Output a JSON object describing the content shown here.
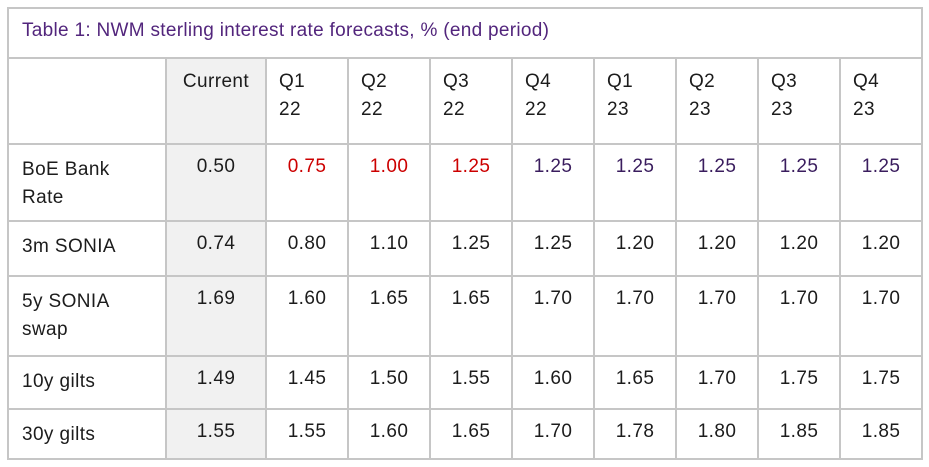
{
  "colors": {
    "black": "#1C1C1C",
    "red": "#CC0000",
    "purple": "#3A1D5E",
    "title_purple": "#52257C",
    "current_column_bg": "#F1F1F1",
    "grid_border": "#C6C6C6"
  },
  "chart_data": {
    "type": "table",
    "title": "Table 1: NWM sterling interest rate forecasts, % (end period)",
    "columns": [
      {
        "line1": "",
        "line2": ""
      },
      {
        "line1": "Current",
        "line2": ""
      },
      {
        "line1": "Q1",
        "line2": "22"
      },
      {
        "line1": "Q2",
        "line2": "22"
      },
      {
        "line1": "Q3",
        "line2": "22"
      },
      {
        "line1": "Q4",
        "line2": "22"
      },
      {
        "line1": "Q1",
        "line2": "23"
      },
      {
        "line1": "Q2",
        "line2": "23"
      },
      {
        "line1": "Q3",
        "line2": "23"
      },
      {
        "line1": "Q4",
        "line2": "23"
      }
    ],
    "rows": [
      {
        "label": "BoE Bank Rate",
        "cells": [
          {
            "value": "0.50",
            "color": "black"
          },
          {
            "value": "0.75",
            "color": "red"
          },
          {
            "value": "1.00",
            "color": "red"
          },
          {
            "value": "1.25",
            "color": "red"
          },
          {
            "value": "1.25",
            "color": "purple"
          },
          {
            "value": "1.25",
            "color": "purple"
          },
          {
            "value": "1.25",
            "color": "purple"
          },
          {
            "value": "1.25",
            "color": "purple"
          },
          {
            "value": "1.25",
            "color": "purple"
          }
        ]
      },
      {
        "label": "3m SONIA",
        "cells": [
          {
            "value": "0.74",
            "color": "black"
          },
          {
            "value": "0.80",
            "color": "black"
          },
          {
            "value": "1.10",
            "color": "black"
          },
          {
            "value": "1.25",
            "color": "black"
          },
          {
            "value": "1.25",
            "color": "black"
          },
          {
            "value": "1.20",
            "color": "black"
          },
          {
            "value": "1.20",
            "color": "black"
          },
          {
            "value": "1.20",
            "color": "black"
          },
          {
            "value": "1.20",
            "color": "black"
          }
        ]
      },
      {
        "label": "5y SONIA swap",
        "cells": [
          {
            "value": "1.69",
            "color": "black"
          },
          {
            "value": "1.60",
            "color": "black"
          },
          {
            "value": "1.65",
            "color": "black"
          },
          {
            "value": "1.65",
            "color": "black"
          },
          {
            "value": "1.70",
            "color": "black"
          },
          {
            "value": "1.70",
            "color": "black"
          },
          {
            "value": "1.70",
            "color": "black"
          },
          {
            "value": "1.70",
            "color": "black"
          },
          {
            "value": "1.70",
            "color": "black"
          }
        ]
      },
      {
        "label": "10y gilts",
        "cells": [
          {
            "value": "1.49",
            "color": "black"
          },
          {
            "value": "1.45",
            "color": "black"
          },
          {
            "value": "1.50",
            "color": "black"
          },
          {
            "value": "1.55",
            "color": "black"
          },
          {
            "value": "1.60",
            "color": "black"
          },
          {
            "value": "1.65",
            "color": "black"
          },
          {
            "value": "1.70",
            "color": "black"
          },
          {
            "value": "1.75",
            "color": "black"
          },
          {
            "value": "1.75",
            "color": "black"
          }
        ]
      },
      {
        "label": "30y gilts",
        "cells": [
          {
            "value": "1.55",
            "color": "black"
          },
          {
            "value": "1.55",
            "color": "black"
          },
          {
            "value": "1.60",
            "color": "black"
          },
          {
            "value": "1.65",
            "color": "black"
          },
          {
            "value": "1.70",
            "color": "black"
          },
          {
            "value": "1.78",
            "color": "black"
          },
          {
            "value": "1.80",
            "color": "black"
          },
          {
            "value": "1.85",
            "color": "black"
          },
          {
            "value": "1.85",
            "color": "black"
          }
        ]
      }
    ]
  }
}
